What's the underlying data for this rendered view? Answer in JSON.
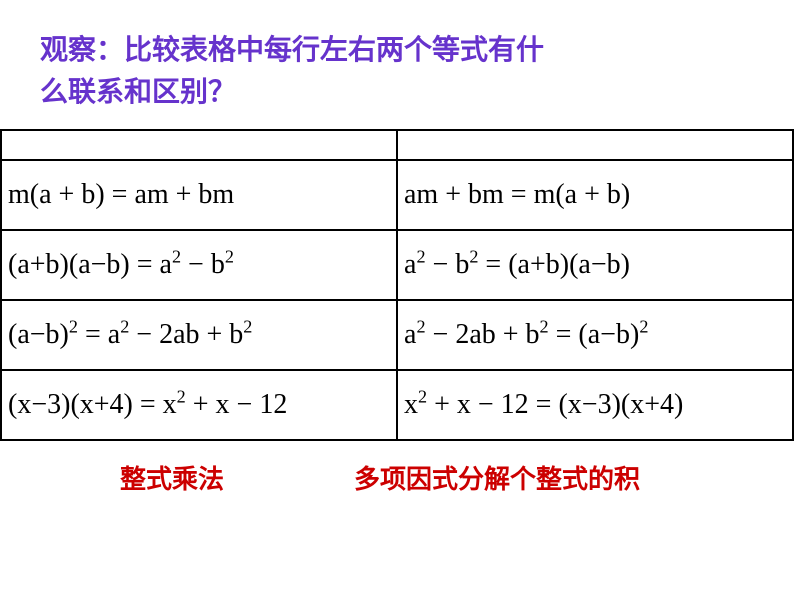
{
  "header": {
    "line1": "观察：比较表格中每行左右两个等式有什",
    "line2": "么联系和区别？"
  },
  "table": {
    "border_color": "#000000",
    "rows": [
      {
        "left": "m(a + b) = am + bm",
        "right": "am + bm = m(a + b)"
      },
      {
        "left": "(a+b)(a−b) = a<sup>2</sup> − b<sup>2</sup>",
        "right": "a<sup>2</sup> − b<sup>2</sup> = (a+b)(a−b)"
      },
      {
        "left": "(a−b)<sup>2</sup> = a<sup>2</sup> − 2ab + b<sup>2</sup>",
        "right": "a<sup>2</sup> − 2ab + b<sup>2</sup> = (a−b)<sup>2</sup>"
      },
      {
        "left": "(x−3)(x+4) = x<sup>2</sup> + x − 12",
        "right": "x<sup>2</sup> + x − 12 = (x−3)(x+4)"
      }
    ]
  },
  "footer": {
    "left": "整式乘法",
    "right": "多项因式分解个整式的积"
  },
  "colors": {
    "header_text": "#6633cc",
    "footer_text": "#cc0000",
    "equation_text": "#000000",
    "background": "#ffffff"
  },
  "fontsize": {
    "header": 28,
    "equation": 28,
    "footer": 26
  }
}
